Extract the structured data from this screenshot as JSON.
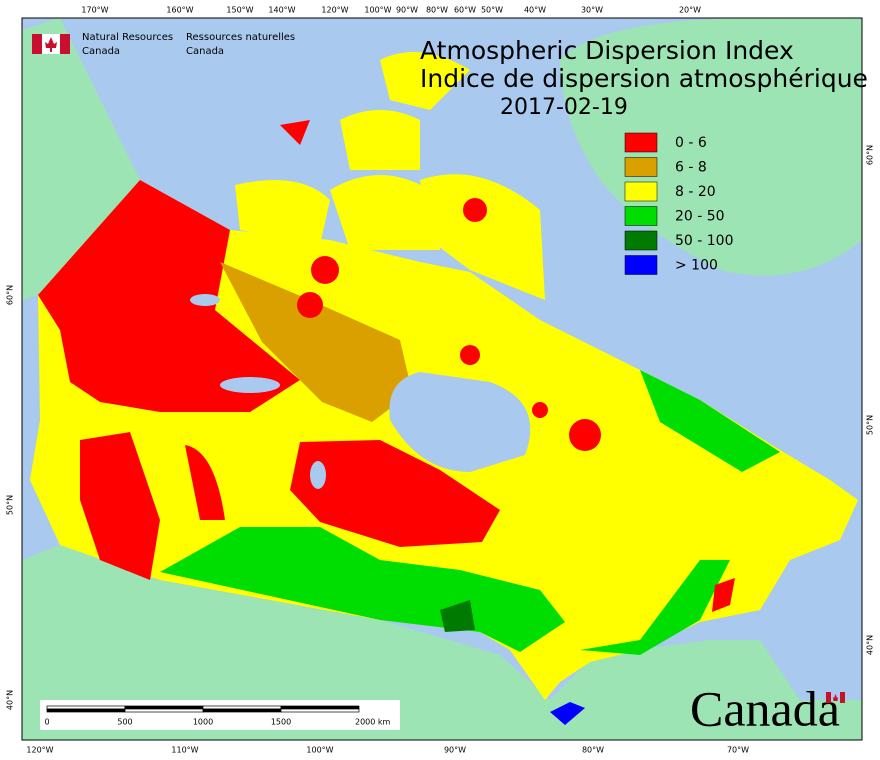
{
  "header": {
    "agency_en": [
      "Natural Resources",
      "Canada"
    ],
    "agency_fr": [
      "Ressources naturelles",
      "Canada"
    ]
  },
  "title": {
    "line1": "Atmospheric Dispersion Index",
    "line2": "Indice de dispersion atmosphérique",
    "date": "2017-02-19"
  },
  "legend": [
    {
      "label": "0 - 6",
      "color": "#ff0000"
    },
    {
      "label": "6 - 8",
      "color": "#d9a000"
    },
    {
      "label": "8 - 20",
      "color": "#ffff00"
    },
    {
      "label": "20 - 50",
      "color": "#00dd00"
    },
    {
      "label": "50 - 100",
      "color": "#007a00"
    },
    {
      "label": "> 100",
      "color": "#0000ff"
    }
  ],
  "graticule": {
    "top": [
      "170°W",
      "160°W",
      "150°W",
      "140°W",
      "120°W",
      "100°W",
      "90°W",
      "80°W",
      "60°W",
      "50°W",
      "40°W",
      "30°W",
      "20°W"
    ],
    "bottom": [
      "120°W",
      "110°W",
      "100°W",
      "90°W",
      "80°W",
      "70°W"
    ],
    "left": [
      "60°N",
      "50°N",
      "40°N"
    ],
    "right": [
      "60°N",
      "50°N",
      "40°N"
    ]
  },
  "scale_bar": {
    "labels": [
      "0",
      "500",
      "1000",
      "1500",
      "2000 km"
    ]
  },
  "wordmark": "Canada"
}
